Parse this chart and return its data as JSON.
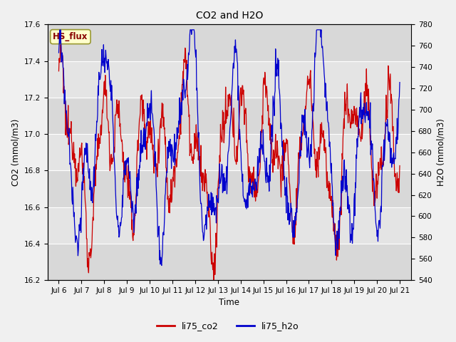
{
  "title": "CO2 and H2O",
  "xlabel": "Time",
  "ylabel_left": "CO2 (mmol/m3)",
  "ylabel_right": "H2O (mmol/m3)",
  "xlim": [
    5.5,
    21.5
  ],
  "ylim_left": [
    16.2,
    17.6
  ],
  "ylim_right": [
    540,
    780
  ],
  "xtick_labels": [
    "Jul 6",
    "Jul 7",
    "Jul 8",
    "Jul 9",
    "Jul 10",
    "Jul 11",
    "Jul 12",
    "Jul 13",
    "Jul 14",
    "Jul 15",
    "Jul 16",
    "Jul 17",
    "Jul 18",
    "Jul 19",
    "Jul 20",
    "Jul 21"
  ],
  "xtick_positions": [
    6,
    7,
    8,
    9,
    10,
    11,
    12,
    13,
    14,
    15,
    16,
    17,
    18,
    19,
    20,
    21
  ],
  "yticks_left": [
    16.2,
    16.4,
    16.6,
    16.8,
    17.0,
    17.2,
    17.4,
    17.6
  ],
  "yticks_right": [
    540,
    560,
    580,
    600,
    620,
    640,
    660,
    680,
    700,
    720,
    740,
    760,
    780
  ],
  "color_co2": "#cc0000",
  "color_h2o": "#0000cc",
  "legend_co2": "li75_co2",
  "legend_h2o": "li75_h2o",
  "label_text": "HS_flux",
  "label_bg": "#ffffcc",
  "label_border": "#999933",
  "bg_outer": "#f0f0f0",
  "bg_inner": "#e8e8e8",
  "band_light": "#dcdcdc",
  "band_dark": "#c8c8c8",
  "grid_color": "#ffffff"
}
